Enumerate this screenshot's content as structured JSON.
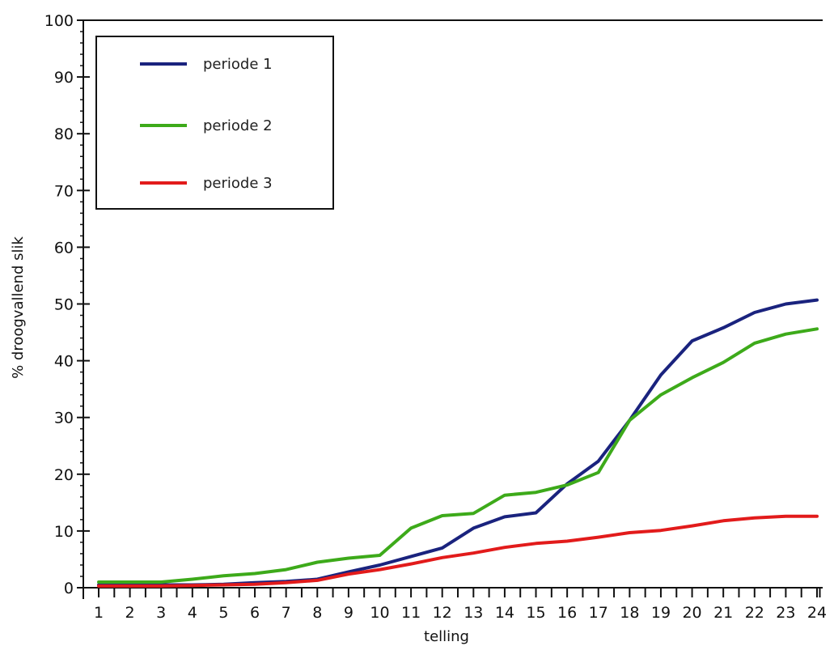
{
  "chart_data": {
    "type": "line",
    "title": "",
    "xlabel": "telling",
    "ylabel": "% droogvallend slik",
    "x": [
      1,
      2,
      3,
      4,
      5,
      6,
      7,
      8,
      9,
      10,
      11,
      12,
      13,
      14,
      15,
      16,
      17,
      18,
      19,
      20,
      21,
      22,
      23,
      24
    ],
    "xlim": [
      1,
      24
    ],
    "ylim": [
      0,
      100
    ],
    "yticks": [
      0,
      10,
      20,
      30,
      40,
      50,
      60,
      70,
      80,
      90,
      100
    ],
    "grid": false,
    "legend_position": "top-left",
    "series": [
      {
        "name": "periode 1",
        "color": "#1a237e",
        "values": [
          0.5,
          0.5,
          0.5,
          0.5,
          0.6,
          0.9,
          1.1,
          1.5,
          2.8,
          4.0,
          5.5,
          7.0,
          10.5,
          12.5,
          13.2,
          18.3,
          22.3,
          29.5,
          37.5,
          43.5,
          45.8,
          48.5,
          50.0,
          50.7
        ]
      },
      {
        "name": "periode 2",
        "color": "#3daa1a",
        "values": [
          1.0,
          1.0,
          1.0,
          1.5,
          2.1,
          2.5,
          3.2,
          4.5,
          5.2,
          5.7,
          10.5,
          12.7,
          13.1,
          16.3,
          16.8,
          18.1,
          20.3,
          29.5,
          34.0,
          37.0,
          39.7,
          43.1,
          44.7,
          45.6
        ]
      },
      {
        "name": "periode 3",
        "color": "#e21b1b",
        "values": [
          0.3,
          0.3,
          0.3,
          0.4,
          0.5,
          0.6,
          0.9,
          1.3,
          2.4,
          3.2,
          4.2,
          5.3,
          6.1,
          7.1,
          7.8,
          8.2,
          8.9,
          9.7,
          10.1,
          10.9,
          11.8,
          12.3,
          12.6,
          12.6
        ]
      }
    ]
  }
}
